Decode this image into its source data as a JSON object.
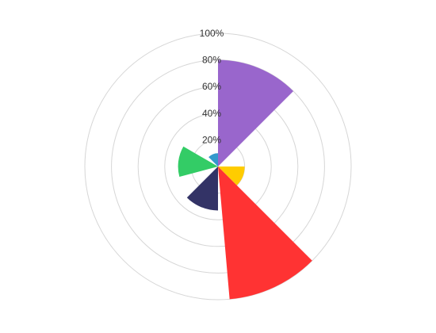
{
  "chart_data": {
    "type": "polar-area",
    "title": "",
    "radial_axis": {
      "min": 0,
      "max": 100,
      "ticks": [
        20,
        40,
        60,
        80,
        100
      ],
      "tick_labels": [
        "20%",
        "40%",
        "60%",
        "80%",
        "100%"
      ],
      "grid": true
    },
    "legend": "none",
    "slices": [
      {
        "value": 80,
        "start_deg": 0,
        "end_deg": 45,
        "color": "#9966cc"
      },
      {
        "value": 20,
        "start_deg": 90,
        "end_deg": 135,
        "color": "#ffcc00"
      },
      {
        "value": 100,
        "start_deg": 135,
        "end_deg": 175,
        "color": "#ff3333"
      },
      {
        "value": 33,
        "start_deg": 180,
        "end_deg": 225,
        "color": "#333366"
      },
      {
        "value": 30,
        "start_deg": 255,
        "end_deg": 300,
        "color": "#33cc66"
      },
      {
        "value": 10,
        "start_deg": 315,
        "end_deg": 360,
        "color": "#3399cc"
      }
    ]
  }
}
